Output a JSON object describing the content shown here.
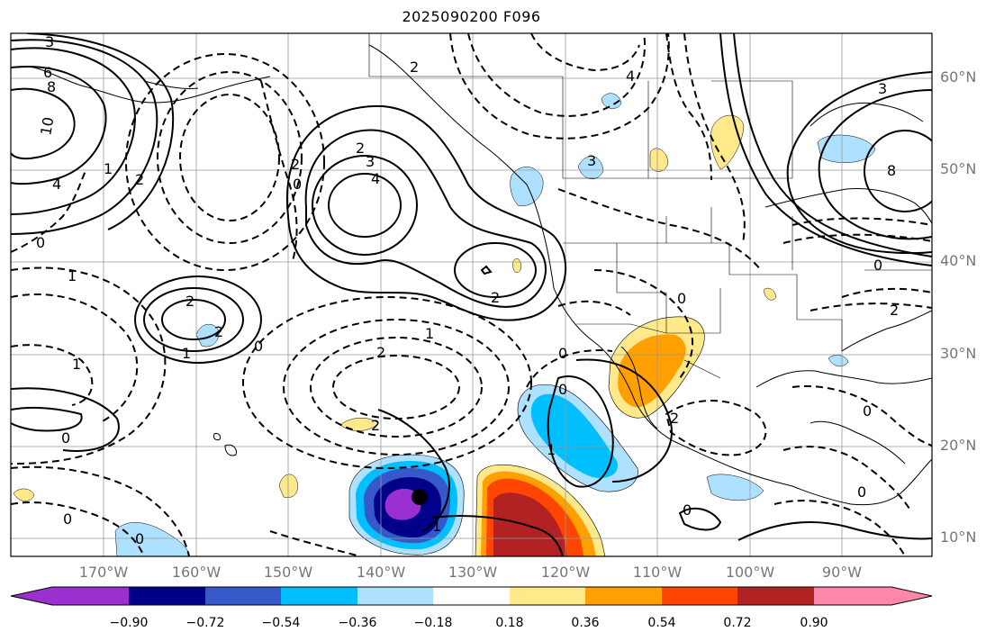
{
  "title": "2025090200 F096",
  "lat_labels": [
    "60°N",
    "50°N",
    "40°N",
    "30°N",
    "20°N",
    "10°N"
  ],
  "lon_labels": [
    "170°W",
    "160°W",
    "150°W",
    "140°W",
    "130°W",
    "120°W",
    "110°W",
    "100°W",
    "90°W"
  ],
  "colorbar": {
    "tick_labels": [
      "−0.90",
      "−0.72",
      "−0.54",
      "−0.36",
      "−0.18",
      "0.18",
      "0.36",
      "0.54",
      "0.72",
      "0.90"
    ],
    "colors": [
      "#9b30d0",
      "#00008b",
      "#3658c8",
      "#00bfff",
      "#aee0ff",
      "#ffffff",
      "#ffe98a",
      "#ffa000",
      "#ff4500",
      "#b22222",
      "#ff88aa"
    ]
  },
  "marker": {
    "label": "",
    "lon": -135,
    "lat": 15
  }
}
